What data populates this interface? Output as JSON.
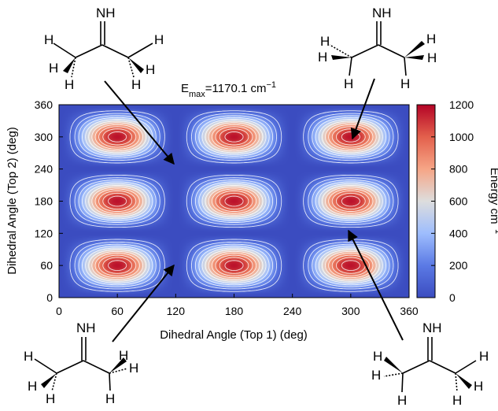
{
  "chart_data": {
    "type": "heatmap",
    "title_parts": {
      "prefix": "E",
      "sub": "max",
      "mid": "=1170.1 cm",
      "sup": "−1"
    },
    "xlabel": "Dihedral Angle (Top 1) (deg)",
    "ylabel": "Dihedral Angle (Top 2) (deg)",
    "xlim": [
      0,
      360
    ],
    "ylim": [
      0,
      360
    ],
    "xticks": [
      "0",
      "60",
      "120",
      "180",
      "240",
      "300",
      "360"
    ],
    "yticks": [
      "0",
      "60",
      "120",
      "180",
      "240",
      "300",
      "360"
    ],
    "colorbar": {
      "label_parts": {
        "main": "Energy cm",
        "sup": "−1"
      },
      "range": [
        0,
        1200
      ],
      "ticks": [
        "0",
        "200",
        "400",
        "600",
        "800",
        "1000",
        "1200"
      ],
      "colormap": "coolwarm",
      "colors": {
        "low": "#3b4cc0",
        "mid": "#dddddd",
        "high": "#b40426"
      }
    },
    "e_max": 1170.1,
    "contour_levels": [
      100,
      200,
      300,
      400,
      500,
      600,
      700,
      800,
      900,
      1000,
      1100
    ],
    "maxima": [
      {
        "x": 60,
        "y": 60
      },
      {
        "x": 180,
        "y": 60
      },
      {
        "x": 300,
        "y": 60
      },
      {
        "x": 60,
        "y": 180
      },
      {
        "x": 180,
        "y": 180
      },
      {
        "x": 300,
        "y": 180
      },
      {
        "x": 60,
        "y": 300
      },
      {
        "x": 180,
        "y": 300
      },
      {
        "x": 300,
        "y": 300
      }
    ],
    "minima": [
      {
        "x": 120,
        "y": 0
      },
      {
        "x": 240,
        "y": 0
      },
      {
        "x": 0,
        "y": 120
      },
      {
        "x": 120,
        "y": 120
      },
      {
        "x": 240,
        "y": 120
      },
      {
        "x": 360,
        "y": 120
      },
      {
        "x": 0,
        "y": 240
      },
      {
        "x": 120,
        "y": 240
      },
      {
        "x": 240,
        "y": 240
      },
      {
        "x": 360,
        "y": 240
      },
      {
        "x": 120,
        "y": 360
      },
      {
        "x": 240,
        "y": 360
      }
    ],
    "annotations": [
      {
        "name": "structure-top-left",
        "arrow_to": {
          "x": 122,
          "y": 240
        }
      },
      {
        "name": "structure-top-right",
        "arrow_to": {
          "x": 296,
          "y": 300
        }
      },
      {
        "name": "structure-bottom-left",
        "arrow_to": {
          "x": 120,
          "y": 60
        }
      },
      {
        "name": "structure-bottom-right",
        "arrow_to": {
          "x": 287,
          "y": 122
        }
      }
    ]
  },
  "structures": {
    "top_left": {
      "nh": "NH",
      "h": "H"
    },
    "top_right": {
      "nh": "NH",
      "h": "H"
    },
    "bottom_left": {
      "nh": "NH",
      "h": "H"
    },
    "bottom_right": {
      "nh": "NH",
      "h": "H"
    }
  }
}
